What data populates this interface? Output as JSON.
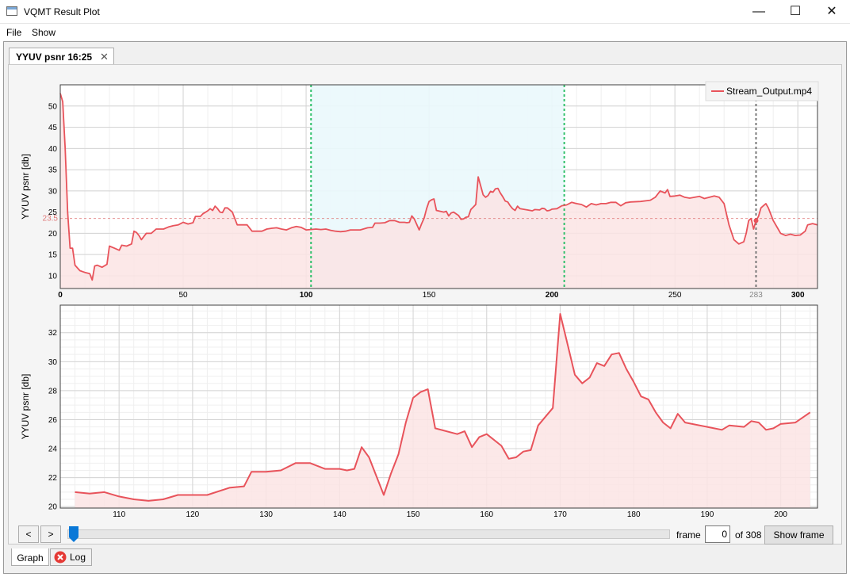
{
  "window": {
    "title": "VQMT Result Plot",
    "minimize_glyph": "—",
    "maximize_glyph": "☐",
    "close_glyph": "✕"
  },
  "menu": {
    "file": "File",
    "show": "Show"
  },
  "tabs": {
    "plot_tab_label": "YYUV psnr 16:25",
    "close_glyph": "✕"
  },
  "controls": {
    "prev_label": "<",
    "next_label": ">",
    "frame_label": "frame",
    "frame_value": "0",
    "of_label": "of 308",
    "show_frame_label": "Show frame",
    "slider_position": 0
  },
  "bottom_tabs": {
    "graph_label": "Graph",
    "log_label": "Log"
  },
  "colors": {
    "series": "#e8535b",
    "series_fill": "#fbe4e4",
    "selection": "#eaf8fc",
    "selection_border": "#2ec06a",
    "marker": "#777777",
    "mean_line": "#e07a7a"
  },
  "chart_data": [
    {
      "type": "area",
      "name": "overview",
      "ylabel": "YYUV psnr [db]",
      "xlim": [
        0,
        308
      ],
      "ylim": [
        7,
        55
      ],
      "xticks": [
        0,
        50,
        100,
        150,
        200,
        250,
        300
      ],
      "yticks": [
        10,
        15,
        20,
        25,
        30,
        35,
        40,
        45,
        50
      ],
      "mean_value": 23.5,
      "mean_label": "23.5",
      "selection_range": [
        102,
        205
      ],
      "frame_marker": 283,
      "frame_marker_label": "283",
      "legend_position": "top-right",
      "series": [
        {
          "name": "Stream_Output.mp4",
          "points": [
            [
              0,
              53
            ],
            [
              1,
              51
            ],
            [
              2,
              40
            ],
            [
              3,
              25
            ],
            [
              4,
              16.5
            ],
            [
              5,
              16.5
            ],
            [
              6,
              12.5
            ],
            [
              8,
              11.2
            ],
            [
              10,
              10.8
            ],
            [
              12,
              10.5
            ],
            [
              13,
              9
            ],
            [
              14,
              12.3
            ],
            [
              15,
              12.5
            ],
            [
              17,
              12
            ],
            [
              19,
              12.7
            ],
            [
              20,
              17
            ],
            [
              22,
              16.5
            ],
            [
              24,
              16
            ],
            [
              25,
              17.2
            ],
            [
              27,
              17
            ],
            [
              29,
              17.5
            ],
            [
              30,
              20.5
            ],
            [
              31,
              20.2
            ],
            [
              32,
              19.5
            ],
            [
              33,
              18.5
            ],
            [
              35,
              20
            ],
            [
              37,
              20
            ],
            [
              39,
              21
            ],
            [
              42,
              21
            ],
            [
              44,
              21.5
            ],
            [
              46,
              21.8
            ],
            [
              48,
              22
            ],
            [
              50,
              22.6
            ],
            [
              52,
              22.2
            ],
            [
              54,
              22.5
            ],
            [
              55,
              24
            ],
            [
              57,
              24
            ],
            [
              58,
              24.6
            ],
            [
              60,
              25.3
            ],
            [
              61,
              25.8
            ],
            [
              62,
              25.4
            ],
            [
              63,
              26.4
            ],
            [
              64,
              25.8
            ],
            [
              65,
              25
            ],
            [
              66,
              24.9
            ],
            [
              67,
              26
            ],
            [
              68,
              26
            ],
            [
              70,
              25
            ],
            [
              72,
              22
            ],
            [
              76,
              22
            ],
            [
              78,
              20.5
            ],
            [
              82,
              20.5
            ],
            [
              84,
              21
            ],
            [
              86,
              21.2
            ],
            [
              88,
              21.3
            ],
            [
              90,
              21
            ],
            [
              92,
              20.8
            ],
            [
              94,
              21.3
            ],
            [
              96,
              21.6
            ],
            [
              98,
              21.4
            ],
            [
              100,
              20.8
            ],
            [
              104,
              21
            ],
            [
              106,
              20.9
            ],
            [
              108,
              21
            ],
            [
              110,
              20.7
            ],
            [
              112,
              20.5
            ],
            [
              114,
              20.4
            ],
            [
              116,
              20.5
            ],
            [
              118,
              20.8
            ],
            [
              122,
              20.8
            ],
            [
              125,
              21.3
            ],
            [
              127,
              21.4
            ],
            [
              128,
              22.4
            ],
            [
              130,
              22.4
            ],
            [
              132,
              22.5
            ],
            [
              134,
              23
            ],
            [
              136,
              23
            ],
            [
              138,
              22.6
            ],
            [
              140,
              22.6
            ],
            [
              141,
              22.5
            ],
            [
              142,
              22.6
            ],
            [
              143,
              24.1
            ],
            [
              144,
              23.4
            ],
            [
              146,
              20.8
            ],
            [
              147,
              22.3
            ],
            [
              148,
              23.6
            ],
            [
              149,
              25.8
            ],
            [
              150,
              27.5
            ],
            [
              151,
              27.9
            ],
            [
              152,
              28.1
            ],
            [
              153,
              25.4
            ],
            [
              156,
              25
            ],
            [
              157,
              25.2
            ],
            [
              158,
              24.1
            ],
            [
              159,
              24.8
            ],
            [
              160,
              25
            ],
            [
              162,
              24.2
            ],
            [
              163,
              23.3
            ],
            [
              164,
              23.4
            ],
            [
              165,
              23.8
            ],
            [
              166,
              23.9
            ],
            [
              167,
              25.6
            ],
            [
              168,
              26.2
            ],
            [
              169,
              26.8
            ],
            [
              170,
              33.3
            ],
            [
              171,
              31.2
            ],
            [
              172,
              29.1
            ],
            [
              173,
              28.5
            ],
            [
              174,
              28.9
            ],
            [
              175,
              29.9
            ],
            [
              176,
              29.7
            ],
            [
              177,
              30.5
            ],
            [
              178,
              30.6
            ],
            [
              179,
              29.5
            ],
            [
              180,
              28.6
            ],
            [
              181,
              27.6
            ],
            [
              182,
              27.4
            ],
            [
              183,
              26.5
            ],
            [
              184,
              25.8
            ],
            [
              185,
              25.4
            ],
            [
              186,
              26.4
            ],
            [
              187,
              25.8
            ],
            [
              190,
              25.5
            ],
            [
              192,
              25.3
            ],
            [
              193,
              25.6
            ],
            [
              195,
              25.5
            ],
            [
              196,
              25.9
            ],
            [
              197,
              25.8
            ],
            [
              198,
              25.3
            ],
            [
              199,
              25.4
            ],
            [
              200,
              25.7
            ],
            [
              202,
              25.8
            ],
            [
              204,
              26.5
            ],
            [
              206,
              26.7
            ],
            [
              208,
              27.3
            ],
            [
              210,
              27
            ],
            [
              212,
              26.8
            ],
            [
              214,
              26.2
            ],
            [
              216,
              27
            ],
            [
              218,
              26.7
            ],
            [
              220,
              27
            ],
            [
              222,
              27
            ],
            [
              224,
              27.3
            ],
            [
              226,
              27.3
            ],
            [
              228,
              26.5
            ],
            [
              230,
              27.2
            ],
            [
              232,
              27.4
            ],
            [
              236,
              27.5
            ],
            [
              240,
              27.8
            ],
            [
              242,
              28.5
            ],
            [
              244,
              30
            ],
            [
              246,
              29.5
            ],
            [
              247,
              30.3
            ],
            [
              248,
              28.7
            ],
            [
              250,
              28.8
            ],
            [
              252,
              29
            ],
            [
              254,
              28.5
            ],
            [
              256,
              28.3
            ],
            [
              258,
              28.5
            ],
            [
              260,
              28.7
            ],
            [
              262,
              28.2
            ],
            [
              264,
              28.5
            ],
            [
              266,
              28.8
            ],
            [
              268,
              28.5
            ],
            [
              270,
              27
            ],
            [
              272,
              22
            ],
            [
              274,
              18.5
            ],
            [
              276,
              17.5
            ],
            [
              278,
              18
            ],
            [
              279,
              20
            ],
            [
              280,
              23
            ],
            [
              281,
              23.5
            ],
            [
              282,
              21
            ],
            [
              283,
              23
            ],
            [
              284,
              24
            ],
            [
              285,
              26
            ],
            [
              286,
              26.5
            ],
            [
              287,
              27
            ],
            [
              288,
              26
            ],
            [
              290,
              23
            ],
            [
              292,
              21
            ],
            [
              293,
              20
            ],
            [
              295,
              19.5
            ],
            [
              297,
              19.8
            ],
            [
              299,
              19.5
            ],
            [
              301,
              19.6
            ],
            [
              303,
              20.5
            ],
            [
              304,
              22
            ],
            [
              306,
              22.3
            ],
            [
              308,
              22
            ]
          ]
        }
      ]
    },
    {
      "type": "area",
      "name": "zoom",
      "ylabel": "YYUV psnr [db]",
      "xlim": [
        102,
        205
      ],
      "ylim": [
        19.9,
        33.9
      ],
      "xticks": [
        110,
        120,
        130,
        140,
        150,
        160,
        170,
        180,
        190,
        200
      ],
      "yticks": [
        20,
        22,
        24,
        26,
        28,
        30,
        32
      ],
      "series_ref": "Stream_Output.mp4"
    }
  ]
}
